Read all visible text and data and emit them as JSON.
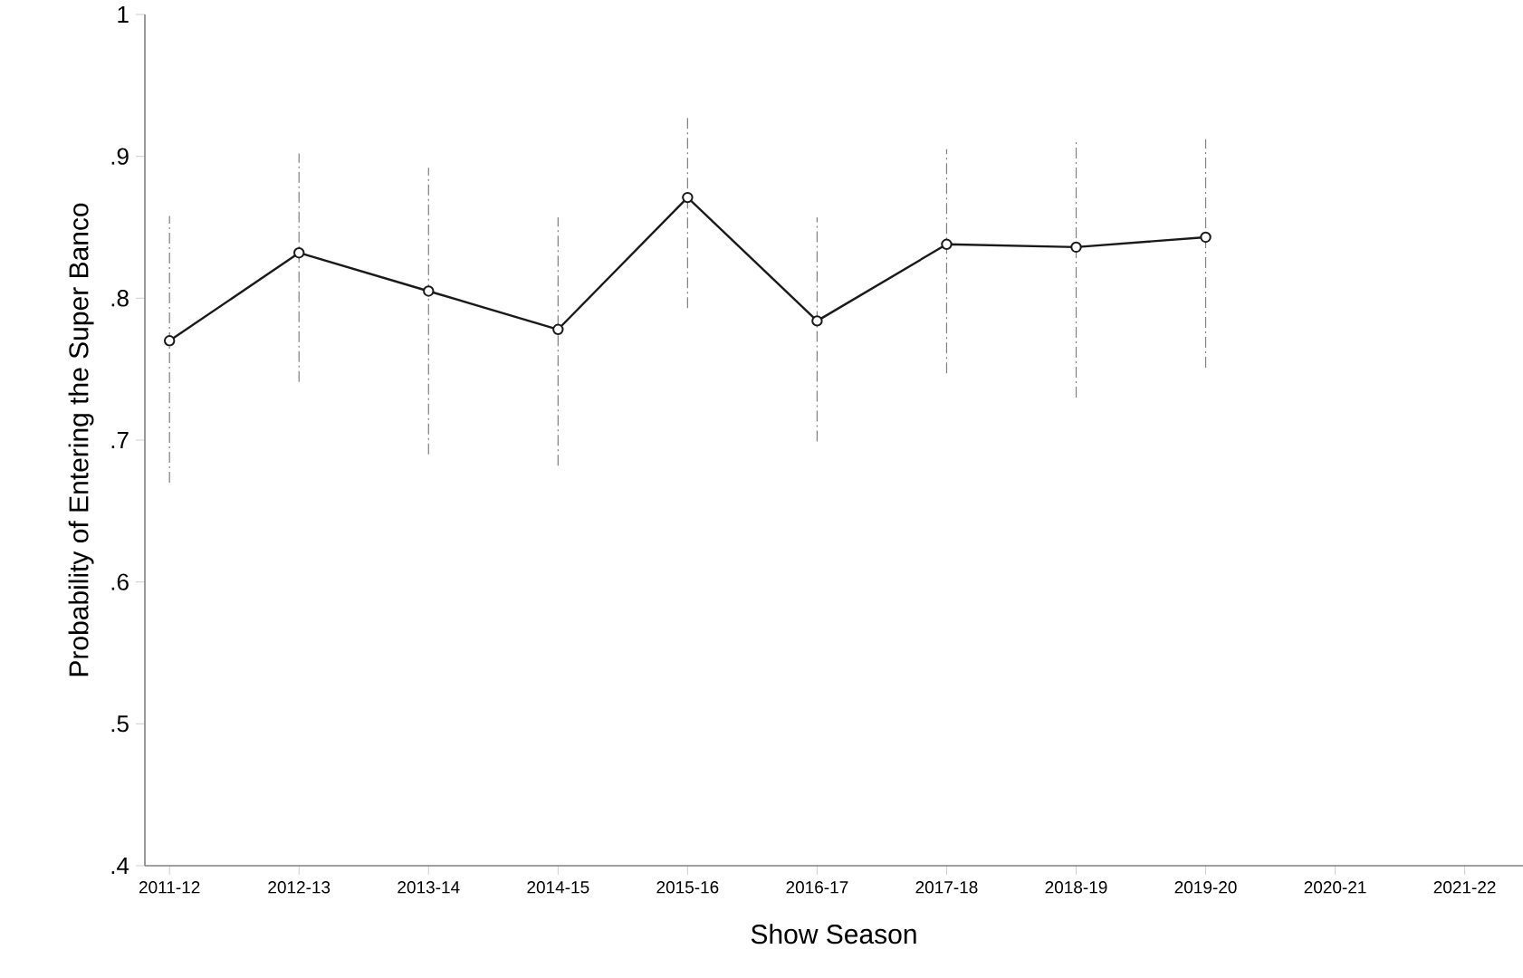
{
  "chart_data": {
    "type": "line",
    "xlabel": "Show Season",
    "ylabel": "Probability of Entering the Super Banco",
    "categories": [
      "2011-12",
      "2012-13",
      "2013-14",
      "2014-15",
      "2015-16",
      "2016-17",
      "2017-18",
      "2018-19",
      "2019-20",
      "2020-21",
      "2021-22"
    ],
    "series": [
      {
        "color": "#1a1a1a",
        "values": [
          0.77,
          0.832,
          0.805,
          0.778,
          0.871,
          0.784,
          0.838,
          0.836,
          0.843,
          null,
          null
        ],
        "errors": [
          [
            0.67,
            0.858
          ],
          [
            0.741,
            0.902
          ],
          [
            0.69,
            0.892
          ],
          [
            0.682,
            0.857
          ],
          [
            0.793,
            0.928
          ],
          [
            0.699,
            0.857
          ],
          [
            0.747,
            0.905
          ],
          [
            0.73,
            0.912
          ],
          [
            0.751,
            0.912
          ],
          null,
          null
        ]
      }
    ],
    "ylim": [
      0.4,
      1
    ],
    "yticks": [
      {
        "value": 0.4,
        "label": ".4"
      },
      {
        "value": 0.5,
        "label": ".5"
      },
      {
        "value": 0.6,
        "label": ".6"
      },
      {
        "value": 0.7,
        "label": ".7"
      },
      {
        "value": 0.8,
        "label": ".8"
      },
      {
        "value": 0.9,
        "label": ".9"
      },
      1
    ],
    "marker": "circle",
    "line_style": "solid"
  }
}
